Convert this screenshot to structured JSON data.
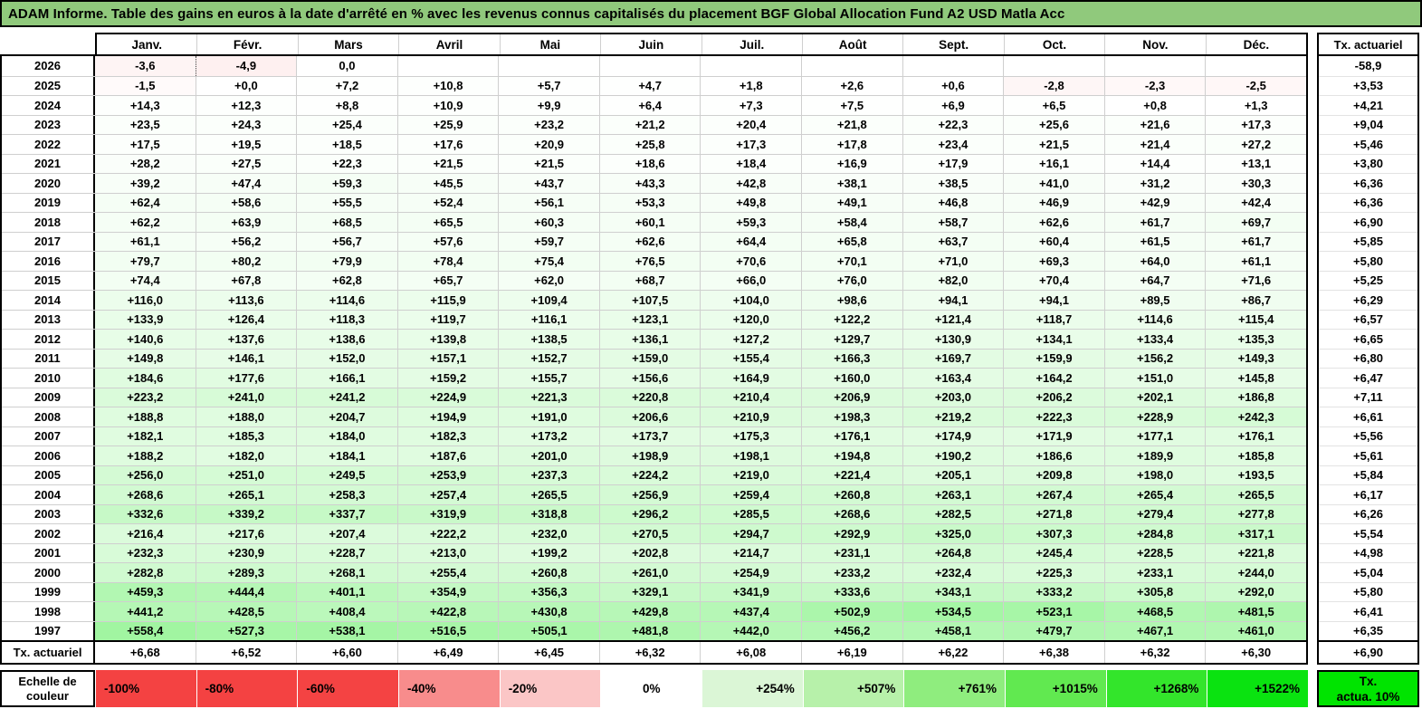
{
  "title": "ADAM Informe. Table des gains en euros à la date d'arrêté en % avec les revenus connus capitalisés du placement BGF Global Allocation Fund A2 USD Matla Acc",
  "months": [
    "Janv.",
    "Févr.",
    "Mars",
    "Avril",
    "Mai",
    "Juin",
    "Juil.",
    "Août",
    "Sept.",
    "Oct.",
    "Nov.",
    "Déc."
  ],
  "right_column": {
    "header": "Tx. actuariel"
  },
  "rows": [
    {
      "year": "2026",
      "values": [
        "-3,6",
        "-4,9",
        "0,0",
        "",
        "",
        "",
        "",
        "",
        "",
        "",
        "",
        ""
      ],
      "tx": "-58,9"
    },
    {
      "year": "2025",
      "values": [
        "-1,5",
        "+0,0",
        "+7,2",
        "+10,8",
        "+5,7",
        "+4,7",
        "+1,8",
        "+2,6",
        "+0,6",
        "-2,8",
        "-2,3",
        "-2,5"
      ],
      "tx": "+3,53"
    },
    {
      "year": "2024",
      "values": [
        "+14,3",
        "+12,3",
        "+8,8",
        "+10,9",
        "+9,9",
        "+6,4",
        "+7,3",
        "+7,5",
        "+6,9",
        "+6,5",
        "+0,8",
        "+1,3"
      ],
      "tx": "+4,21"
    },
    {
      "year": "2023",
      "values": [
        "+23,5",
        "+24,3",
        "+25,4",
        "+25,9",
        "+23,2",
        "+21,2",
        "+20,4",
        "+21,8",
        "+22,3",
        "+25,6",
        "+21,6",
        "+17,3"
      ],
      "tx": "+9,04"
    },
    {
      "year": "2022",
      "values": [
        "+17,5",
        "+19,5",
        "+18,5",
        "+17,6",
        "+20,9",
        "+25,8",
        "+17,3",
        "+17,8",
        "+23,4",
        "+21,5",
        "+21,4",
        "+27,2"
      ],
      "tx": "+5,46"
    },
    {
      "year": "2021",
      "values": [
        "+28,2",
        "+27,5",
        "+22,3",
        "+21,5",
        "+21,5",
        "+18,6",
        "+18,4",
        "+16,9",
        "+17,9",
        "+16,1",
        "+14,4",
        "+13,1"
      ],
      "tx": "+3,80"
    },
    {
      "year": "2020",
      "values": [
        "+39,2",
        "+47,4",
        "+59,3",
        "+45,5",
        "+43,7",
        "+43,3",
        "+42,8",
        "+38,1",
        "+38,5",
        "+41,0",
        "+31,2",
        "+30,3"
      ],
      "tx": "+6,36"
    },
    {
      "year": "2019",
      "values": [
        "+62,4",
        "+58,6",
        "+55,5",
        "+52,4",
        "+56,1",
        "+53,3",
        "+49,8",
        "+49,1",
        "+46,8",
        "+46,9",
        "+42,9",
        "+42,4"
      ],
      "tx": "+6,36"
    },
    {
      "year": "2018",
      "values": [
        "+62,2",
        "+63,9",
        "+68,5",
        "+65,5",
        "+60,3",
        "+60,1",
        "+59,3",
        "+58,4",
        "+58,7",
        "+62,6",
        "+61,7",
        "+69,7"
      ],
      "tx": "+6,90"
    },
    {
      "year": "2017",
      "values": [
        "+61,1",
        "+56,2",
        "+56,7",
        "+57,6",
        "+59,7",
        "+62,6",
        "+64,4",
        "+65,8",
        "+63,7",
        "+60,4",
        "+61,5",
        "+61,7"
      ],
      "tx": "+5,85"
    },
    {
      "year": "2016",
      "values": [
        "+79,7",
        "+80,2",
        "+79,9",
        "+78,4",
        "+75,4",
        "+76,5",
        "+70,6",
        "+70,1",
        "+71,0",
        "+69,3",
        "+64,0",
        "+61,1"
      ],
      "tx": "+5,80"
    },
    {
      "year": "2015",
      "values": [
        "+74,4",
        "+67,8",
        "+62,8",
        "+65,7",
        "+62,0",
        "+68,7",
        "+66,0",
        "+76,0",
        "+82,0",
        "+70,4",
        "+64,7",
        "+71,6"
      ],
      "tx": "+5,25"
    },
    {
      "year": "2014",
      "values": [
        "+116,0",
        "+113,6",
        "+114,6",
        "+115,9",
        "+109,4",
        "+107,5",
        "+104,0",
        "+98,6",
        "+94,1",
        "+94,1",
        "+89,5",
        "+86,7"
      ],
      "tx": "+6,29"
    },
    {
      "year": "2013",
      "values": [
        "+133,9",
        "+126,4",
        "+118,3",
        "+119,7",
        "+116,1",
        "+123,1",
        "+120,0",
        "+122,2",
        "+121,4",
        "+118,7",
        "+114,6",
        "+115,4"
      ],
      "tx": "+6,57"
    },
    {
      "year": "2012",
      "values": [
        "+140,6",
        "+137,6",
        "+138,6",
        "+139,8",
        "+138,5",
        "+136,1",
        "+127,2",
        "+129,7",
        "+130,9",
        "+134,1",
        "+133,4",
        "+135,3"
      ],
      "tx": "+6,65"
    },
    {
      "year": "2011",
      "values": [
        "+149,8",
        "+146,1",
        "+152,0",
        "+157,1",
        "+152,7",
        "+159,0",
        "+155,4",
        "+166,3",
        "+169,7",
        "+159,9",
        "+156,2",
        "+149,3"
      ],
      "tx": "+6,80"
    },
    {
      "year": "2010",
      "values": [
        "+184,6",
        "+177,6",
        "+166,1",
        "+159,2",
        "+155,7",
        "+156,6",
        "+164,9",
        "+160,0",
        "+163,4",
        "+164,2",
        "+151,0",
        "+145,8"
      ],
      "tx": "+6,47"
    },
    {
      "year": "2009",
      "values": [
        "+223,2",
        "+241,0",
        "+241,2",
        "+224,9",
        "+221,3",
        "+220,8",
        "+210,4",
        "+206,9",
        "+203,0",
        "+206,2",
        "+202,1",
        "+186,8"
      ],
      "tx": "+7,11"
    },
    {
      "year": "2008",
      "values": [
        "+188,8",
        "+188,0",
        "+204,7",
        "+194,9",
        "+191,0",
        "+206,6",
        "+210,9",
        "+198,3",
        "+219,2",
        "+222,3",
        "+228,9",
        "+242,3"
      ],
      "tx": "+6,61"
    },
    {
      "year": "2007",
      "values": [
        "+182,1",
        "+185,3",
        "+184,0",
        "+182,3",
        "+173,2",
        "+173,7",
        "+175,3",
        "+176,1",
        "+174,9",
        "+171,9",
        "+177,1",
        "+176,1"
      ],
      "tx": "+5,56"
    },
    {
      "year": "2006",
      "values": [
        "+188,2",
        "+182,0",
        "+184,1",
        "+187,6",
        "+201,0",
        "+198,9",
        "+198,1",
        "+194,8",
        "+190,2",
        "+186,6",
        "+189,9",
        "+185,8"
      ],
      "tx": "+5,61"
    },
    {
      "year": "2005",
      "values": [
        "+256,0",
        "+251,0",
        "+249,5",
        "+253,9",
        "+237,3",
        "+224,2",
        "+219,0",
        "+221,4",
        "+205,1",
        "+209,8",
        "+198,0",
        "+193,5"
      ],
      "tx": "+5,84"
    },
    {
      "year": "2004",
      "values": [
        "+268,6",
        "+265,1",
        "+258,3",
        "+257,4",
        "+265,5",
        "+256,9",
        "+259,4",
        "+260,8",
        "+263,1",
        "+267,4",
        "+265,4",
        "+265,5"
      ],
      "tx": "+6,17"
    },
    {
      "year": "2003",
      "values": [
        "+332,6",
        "+339,2",
        "+337,7",
        "+319,9",
        "+318,8",
        "+296,2",
        "+285,5",
        "+268,6",
        "+282,5",
        "+271,8",
        "+279,4",
        "+277,8"
      ],
      "tx": "+6,26"
    },
    {
      "year": "2002",
      "values": [
        "+216,4",
        "+217,6",
        "+207,4",
        "+222,2",
        "+232,0",
        "+270,5",
        "+294,7",
        "+292,9",
        "+325,0",
        "+307,3",
        "+284,8",
        "+317,1"
      ],
      "tx": "+5,54"
    },
    {
      "year": "2001",
      "values": [
        "+232,3",
        "+230,9",
        "+228,7",
        "+213,0",
        "+199,2",
        "+202,8",
        "+214,7",
        "+231,1",
        "+264,8",
        "+245,4",
        "+228,5",
        "+221,8"
      ],
      "tx": "+4,98"
    },
    {
      "year": "2000",
      "values": [
        "+282,8",
        "+289,3",
        "+268,1",
        "+255,4",
        "+260,8",
        "+261,0",
        "+254,9",
        "+233,2",
        "+232,4",
        "+225,3",
        "+233,1",
        "+244,0"
      ],
      "tx": "+5,04"
    },
    {
      "year": "1999",
      "values": [
        "+459,3",
        "+444,4",
        "+401,1",
        "+354,9",
        "+356,3",
        "+329,1",
        "+341,9",
        "+333,6",
        "+343,1",
        "+333,2",
        "+305,8",
        "+292,0"
      ],
      "tx": "+5,80"
    },
    {
      "year": "1998",
      "values": [
        "+441,2",
        "+428,5",
        "+408,4",
        "+422,8",
        "+430,8",
        "+429,8",
        "+437,4",
        "+502,9",
        "+534,5",
        "+523,1",
        "+468,5",
        "+481,5"
      ],
      "tx": "+6,41"
    },
    {
      "year": "1997",
      "values": [
        "+558,4",
        "+527,3",
        "+538,1",
        "+516,5",
        "+505,1",
        "+481,8",
        "+442,0",
        "+456,2",
        "+458,1",
        "+479,7",
        "+467,1",
        "+461,0"
      ],
      "tx": "+6,35"
    }
  ],
  "footer": {
    "label": "Tx. actuariel",
    "values": [
      "+6,68",
      "+6,52",
      "+6,60",
      "+6,49",
      "+6,45",
      "+6,32",
      "+6,08",
      "+6,19",
      "+6,22",
      "+6,38",
      "+6,32",
      "+6,30"
    ],
    "tx": "+6,90"
  },
  "current_month_divider": {
    "year": "2026",
    "month_index": 1
  },
  "legend": {
    "label": "Echelle de couleur",
    "blocks": [
      {
        "label": "-100%",
        "color": "#F44242",
        "align": "left"
      },
      {
        "label": "-80%",
        "color": "#F44242",
        "align": "left"
      },
      {
        "label": "-60%",
        "color": "#F44343",
        "align": "left"
      },
      {
        "label": "-40%",
        "color": "#F88C8C",
        "align": "left"
      },
      {
        "label": "-20%",
        "color": "#FBC6C6",
        "align": "left"
      },
      {
        "label": "0%",
        "color": "#FFFFFF",
        "align": "center"
      },
      {
        "label": "+254%",
        "color": "#DBF6D6",
        "align": "right"
      },
      {
        "label": "+507%",
        "color": "#B7F1AA",
        "align": "right"
      },
      {
        "label": "+761%",
        "color": "#8FED7E",
        "align": "right"
      },
      {
        "label": "+1015%",
        "color": "#61E950",
        "align": "right"
      },
      {
        "label": "+1268%",
        "color": "#33E52B",
        "align": "right"
      },
      {
        "label": "+1522%",
        "color": "#0AE310",
        "align": "right"
      }
    ],
    "right_box": {
      "line1": "Tx.",
      "line2": "actua. 10%",
      "color": "#00E400"
    }
  },
  "colors": {
    "title_bg": "#90C97C",
    "negative_max": "#F44242",
    "positive_max": "#00E400",
    "scale_negative_limit": 60,
    "scale_positive_limit": 1522
  }
}
